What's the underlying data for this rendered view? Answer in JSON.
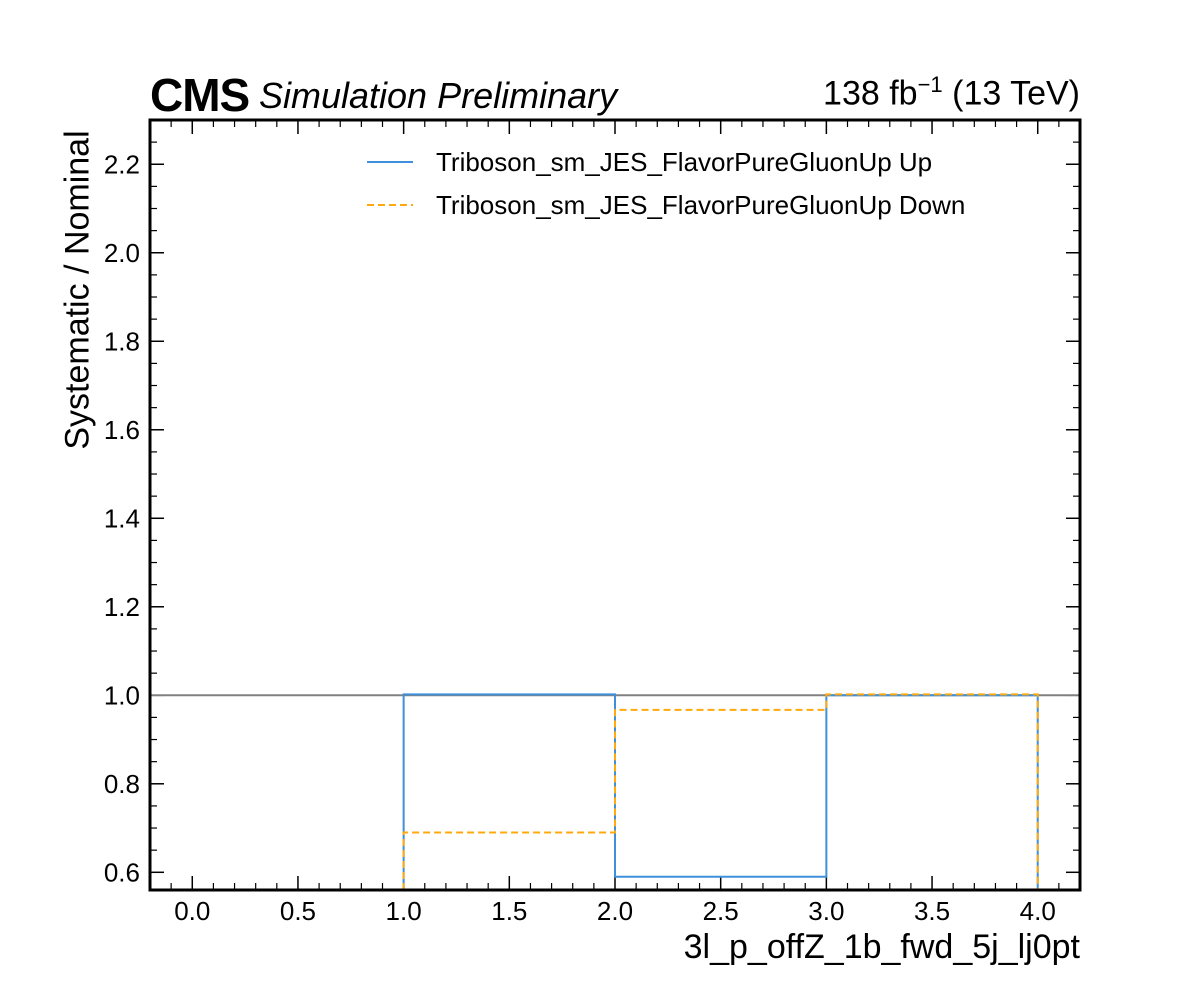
{
  "header": {
    "experiment": "CMS",
    "status": "Simulation Preliminary",
    "lumi_value": "138 fb",
    "lumi_exp": "−1",
    "lumi_energy": " (13 TeV)"
  },
  "colors": {
    "up": "#3f90da",
    "down": "#ffa90e",
    "reference": "#808080"
  },
  "chart_data": {
    "type": "line",
    "xlabel": "3l_p_offZ_1b_fwd_5j_lj0pt",
    "ylabel": "Systematic / Nominal",
    "xlim": [
      -0.2,
      4.2
    ],
    "ylim": [
      0.56,
      2.3
    ],
    "xticks": [
      "0.0",
      "0.5",
      "1.0",
      "1.5",
      "2.0",
      "2.5",
      "3.0",
      "3.5",
      "4.0"
    ],
    "yticks": [
      "0.6",
      "0.8",
      "1.0",
      "1.2",
      "1.4",
      "1.6",
      "1.8",
      "2.0",
      "2.2"
    ],
    "reference_line": 1.0,
    "bin_edges": [
      1.0,
      2.0,
      3.0,
      4.0
    ],
    "legend_position": "top-right",
    "series": [
      {
        "name": "Triboson_sm_JES_FlavorPureGluonUp Up",
        "style": "solid",
        "values": [
          1.002,
          0.59,
          1.0
        ]
      },
      {
        "name": "Triboson_sm_JES_FlavorPureGluonUp Down",
        "style": "dashed",
        "values": [
          0.69,
          0.967,
          1.002
        ]
      }
    ]
  }
}
